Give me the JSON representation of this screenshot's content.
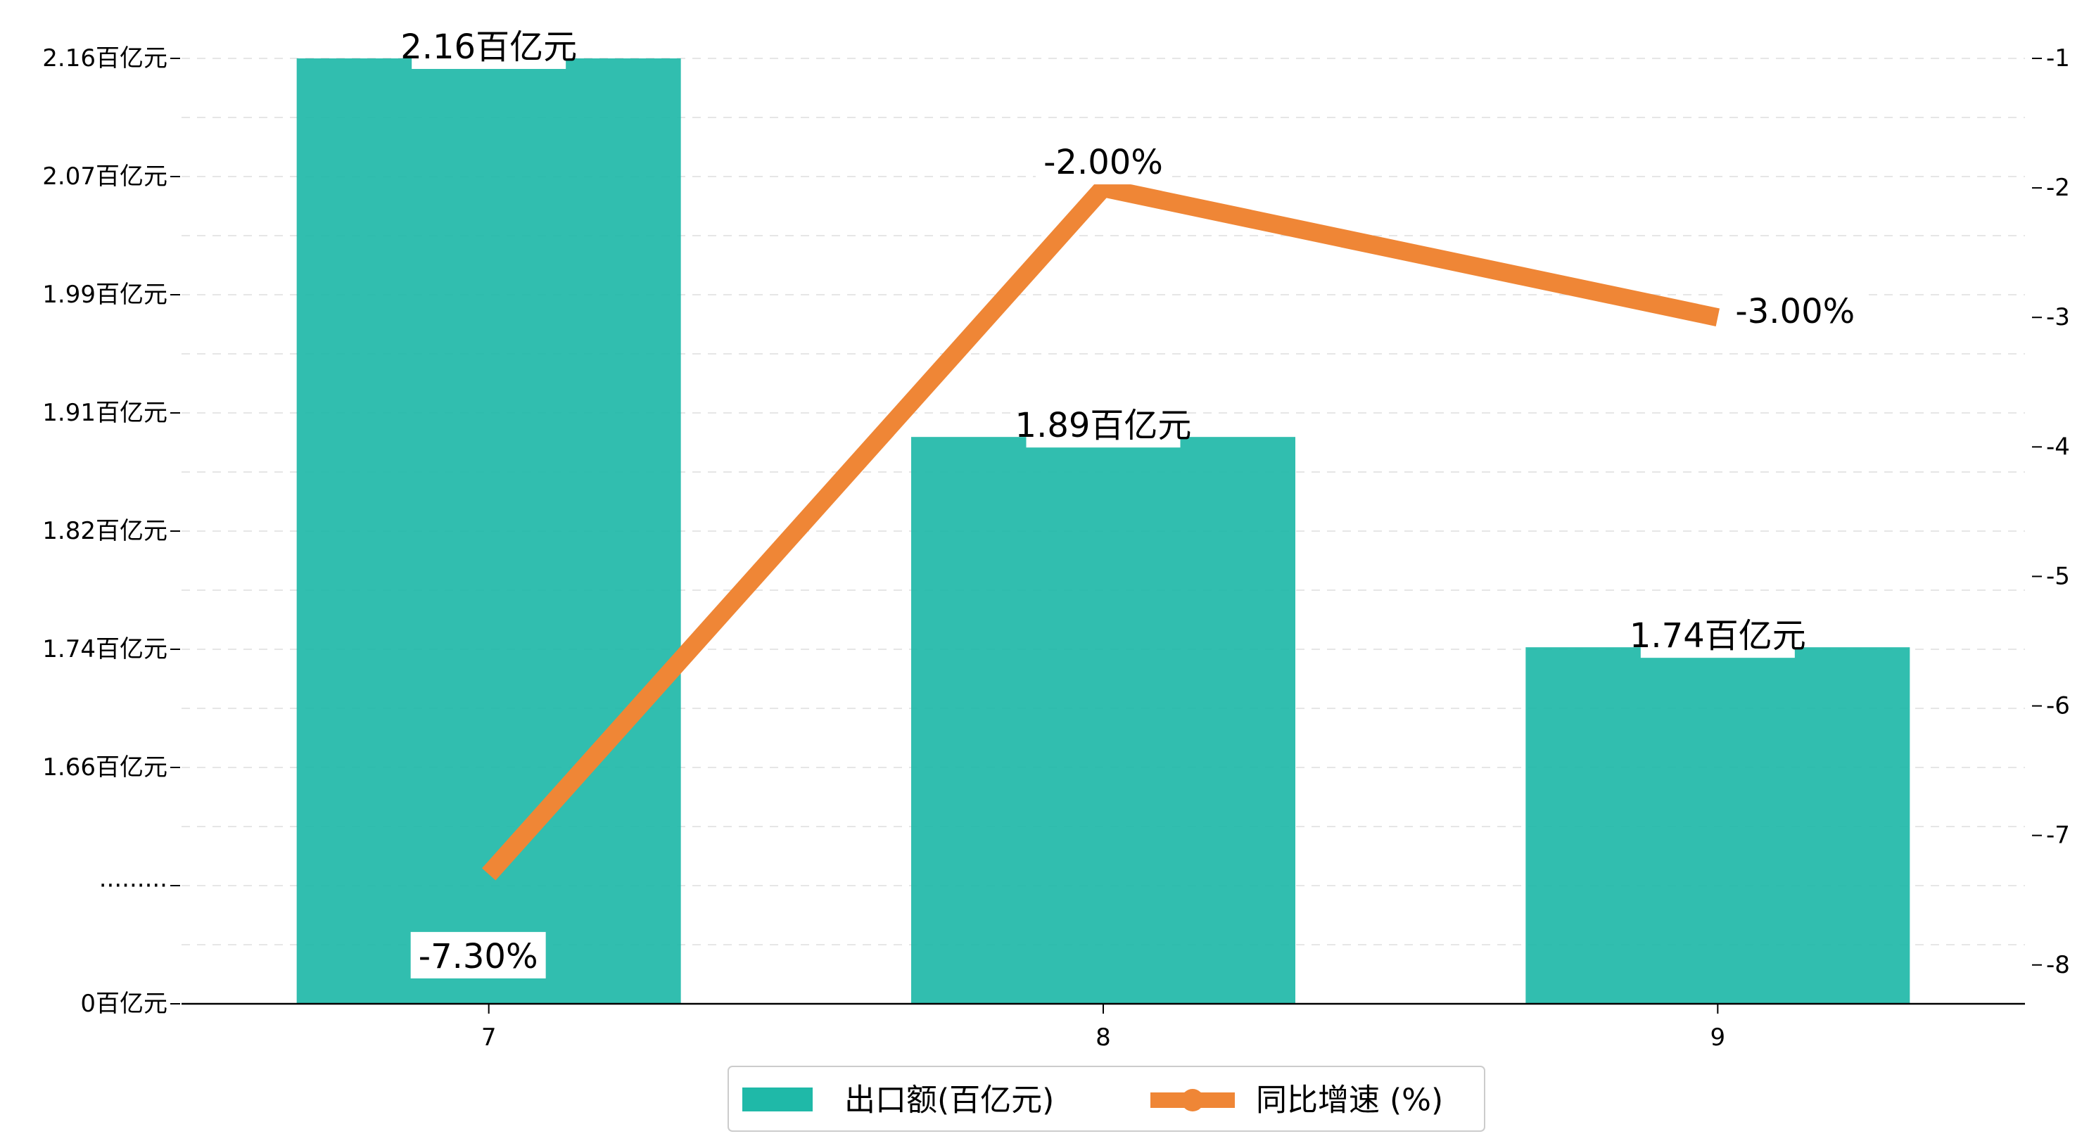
{
  "chart_data": {
    "type": "bar",
    "categories": [
      "7",
      "8",
      "9"
    ],
    "series": [
      {
        "name": "出口额(百亿元)",
        "kind": "bar",
        "axis": "left",
        "color": "#1fb9a8",
        "values": [
          2.16,
          1.89,
          1.74
        ],
        "labels": [
          "2.16百亿元",
          "1.89百亿元",
          "1.74百亿元"
        ]
      },
      {
        "name": "同比增速 (%)",
        "kind": "line",
        "axis": "right",
        "color": "#ef8636",
        "values": [
          -7.3,
          -2.0,
          -3.0
        ],
        "labels": [
          "-7.30%",
          "-2.00%",
          "-3.00%"
        ]
      }
    ],
    "y_left": {
      "ticks": [
        "0百亿元",
        "·········",
        "1.66百亿元",
        "1.74百亿元",
        "1.82百亿元",
        "1.91百亿元",
        "1.99百亿元",
        "2.07百亿元",
        "2.16百亿元"
      ],
      "broken_axis": true
    },
    "y_right": {
      "ylim": [
        -8.3,
        -1.0
      ],
      "ticks": [
        "-1",
        "-2",
        "-3",
        "-4",
        "-5",
        "-6",
        "-7",
        "-8"
      ]
    },
    "grid": "horizontal-dashed",
    "legend_position": "bottom-center"
  }
}
